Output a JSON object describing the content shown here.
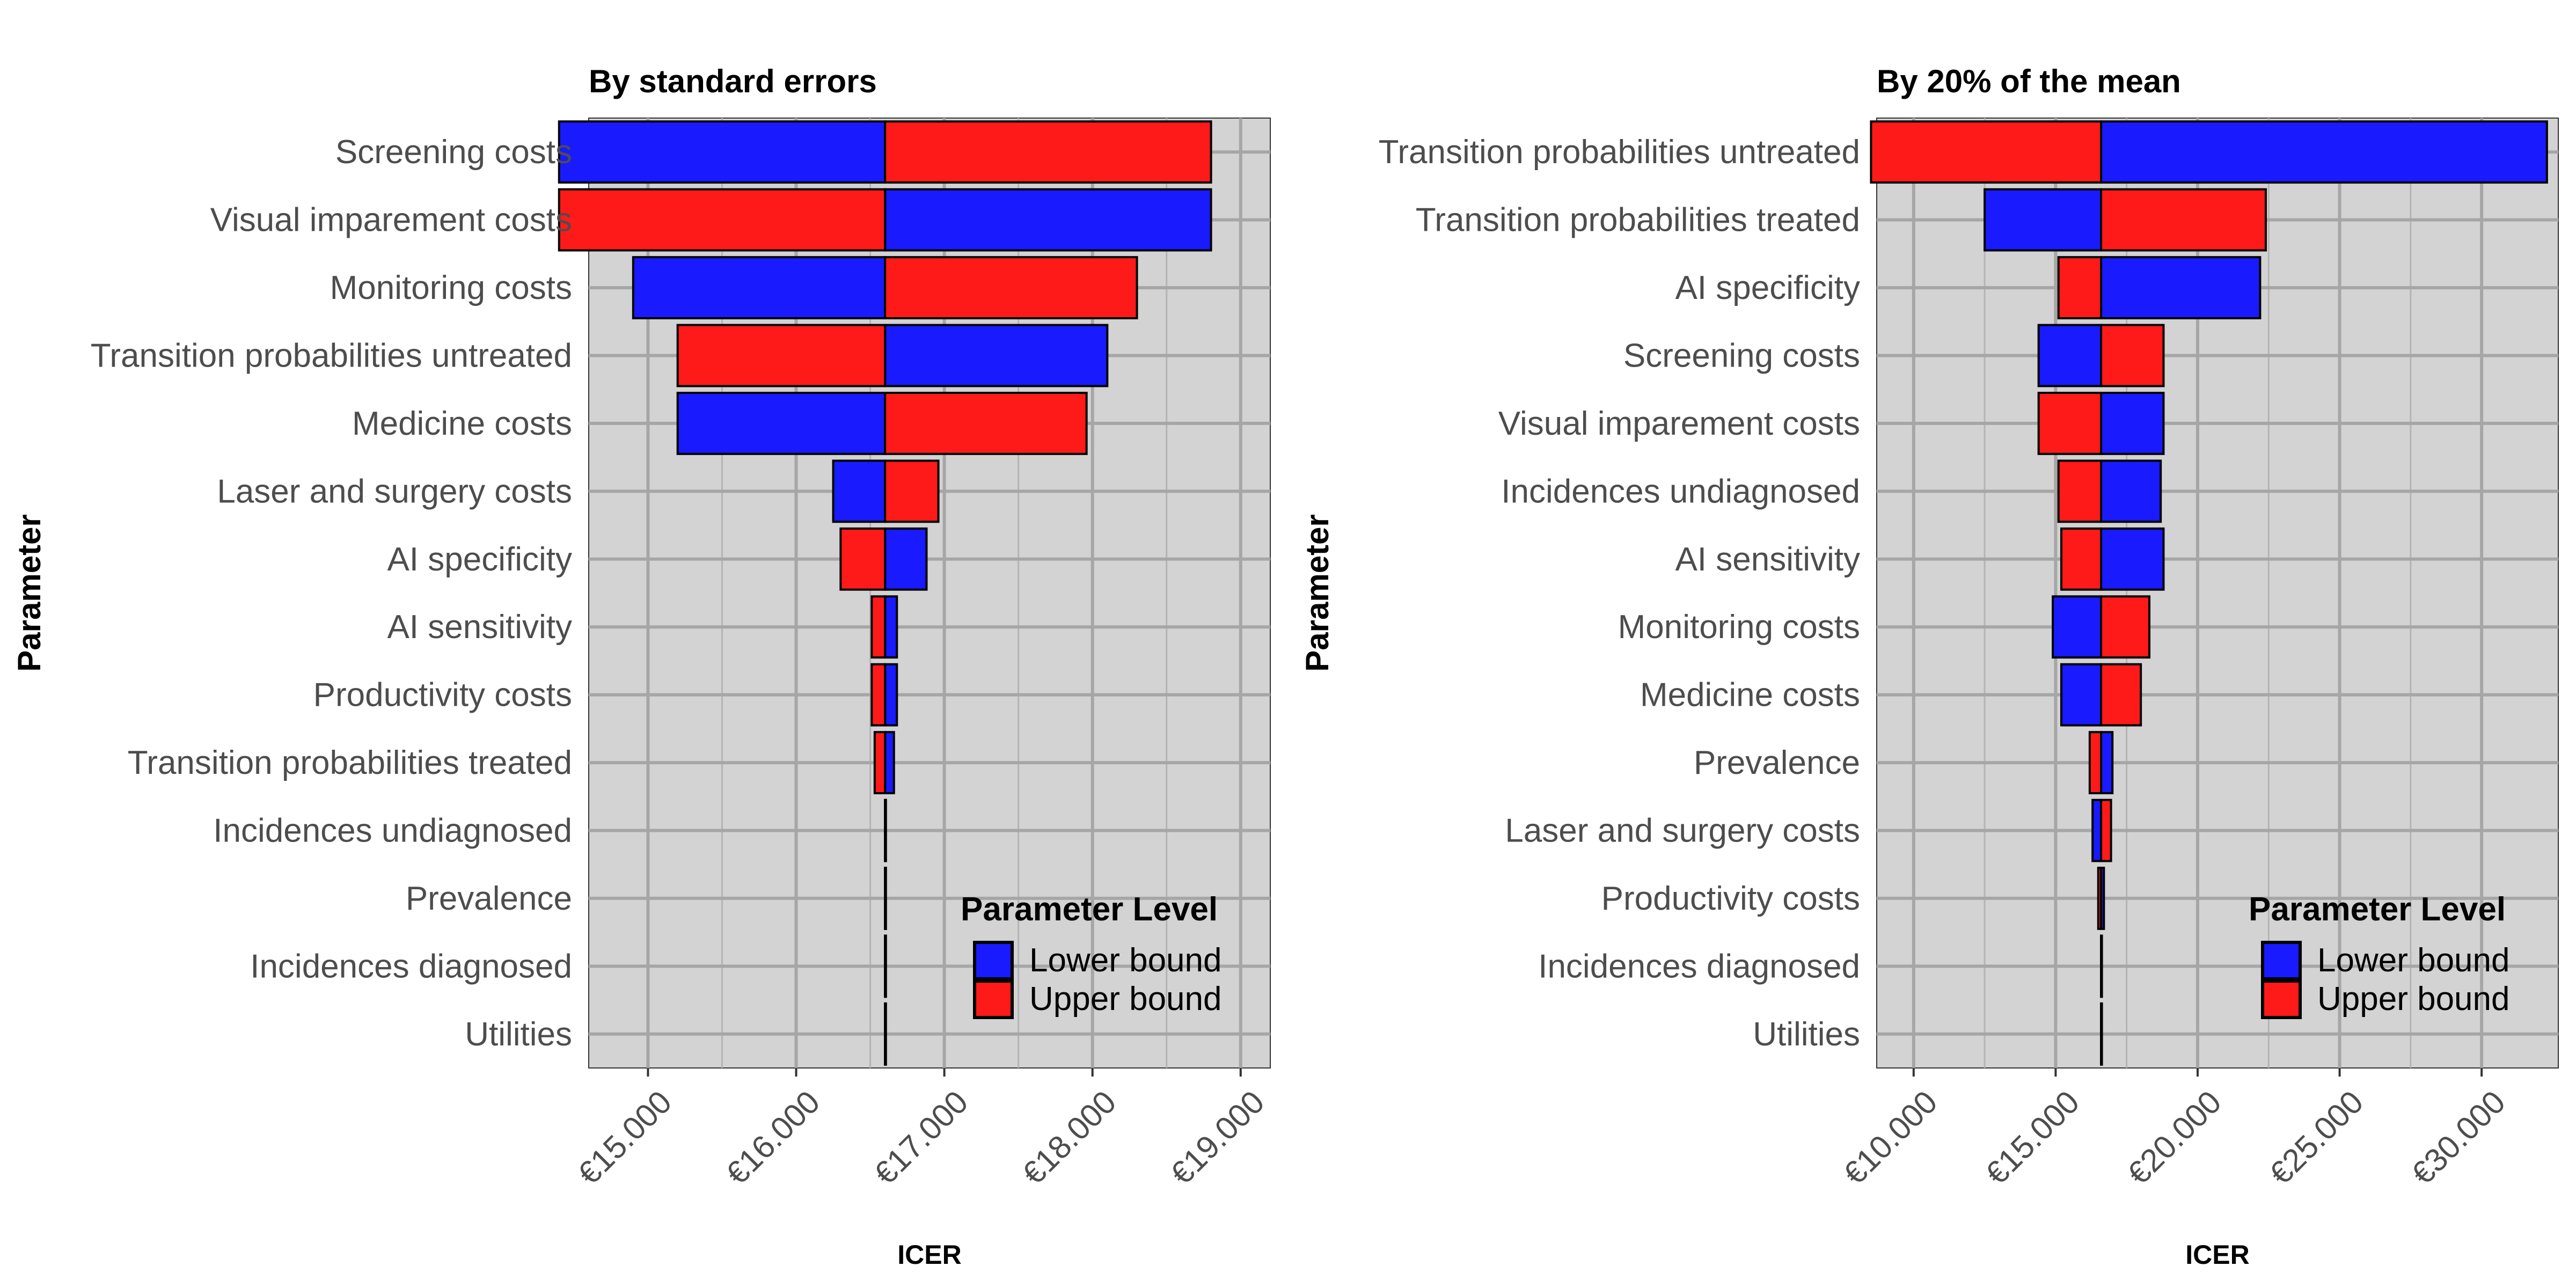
{
  "chart_data": [
    {
      "type": "bar",
      "orientation": "horizontal",
      "subtype": "tornado",
      "title": "By standard errors",
      "xlabel": "ICER",
      "ylabel": "Parameter",
      "xlim": [
        14600,
        19200
      ],
      "base_value": 16600,
      "xticks": [
        15000,
        16000,
        17000,
        18000,
        19000
      ],
      "xtick_labels": [
        "€15.000",
        "€16.000",
        "€17.000",
        "€18.000",
        "€19.000"
      ],
      "grid": true,
      "legend": {
        "title": "Parameter Level",
        "position": "bottom-right",
        "entries": [
          {
            "label": "Lower bound",
            "color": "#1a1aff"
          },
          {
            "label": "Upper bound",
            "color": "#ff1a1a"
          }
        ]
      },
      "categories": [
        "Screening costs",
        "Visual imparement costs",
        "Monitoring costs",
        "Transition probabilities untreated",
        "Medicine costs",
        "Laser and surgery costs",
        "AI specificity",
        "AI sensitivity",
        "Productivity costs",
        "Transition probabilities treated",
        "Incidences undiagnosed ",
        "Prevalence",
        "Incidences diagnosed ",
        "Utilities"
      ],
      "series": [
        {
          "name": "Lower bound",
          "values": [
            14400,
            18800,
            14900,
            18100,
            15200,
            16250,
            16880,
            16680,
            16680,
            16660,
            16600,
            16600,
            16600,
            16600
          ]
        },
        {
          "name": "Upper bound",
          "values": [
            18800,
            14400,
            18300,
            15200,
            17960,
            16960,
            16300,
            16510,
            16510,
            16530,
            16600,
            16600,
            16600,
            16600
          ]
        }
      ]
    },
    {
      "type": "bar",
      "orientation": "horizontal",
      "subtype": "tornado",
      "title": "By 20% of the mean",
      "xlabel": "ICER",
      "ylabel": "Parameter",
      "xlim": [
        8700,
        32700
      ],
      "base_value": 16600,
      "xticks": [
        10000,
        15000,
        20000,
        25000,
        30000
      ],
      "xtick_labels": [
        "€10.000",
        "€15.000",
        "€20.000",
        "€25.000",
        "€30.000"
      ],
      "grid": true,
      "legend": {
        "title": "Parameter Level",
        "position": "bottom-right",
        "entries": [
          {
            "label": "Lower bound",
            "color": "#1a1aff"
          },
          {
            "label": "Upper bound",
            "color": "#ff1a1a"
          }
        ]
      },
      "categories": [
        "Transition probabilities untreated",
        "Transition probabilities treated",
        "AI specificity",
        "Screening costs",
        "Visual imparement costs",
        "Incidences undiagnosed ",
        "AI sensitivity",
        "Monitoring costs",
        "Medicine costs",
        "Prevalence",
        "Laser and surgery costs",
        "Productivity costs",
        "Incidences diagnosed ",
        "Utilities"
      ],
      "series": [
        {
          "name": "Lower bound",
          "values": [
            32300,
            12500,
            22200,
            14400,
            18800,
            18700,
            18800,
            14900,
            15200,
            17000,
            16300,
            16700,
            16600,
            16600
          ]
        },
        {
          "name": "Upper bound",
          "values": [
            8500,
            22400,
            15100,
            18800,
            14400,
            15100,
            15200,
            18300,
            18000,
            16200,
            16950,
            16500,
            16600,
            16600
          ]
        }
      ]
    }
  ]
}
